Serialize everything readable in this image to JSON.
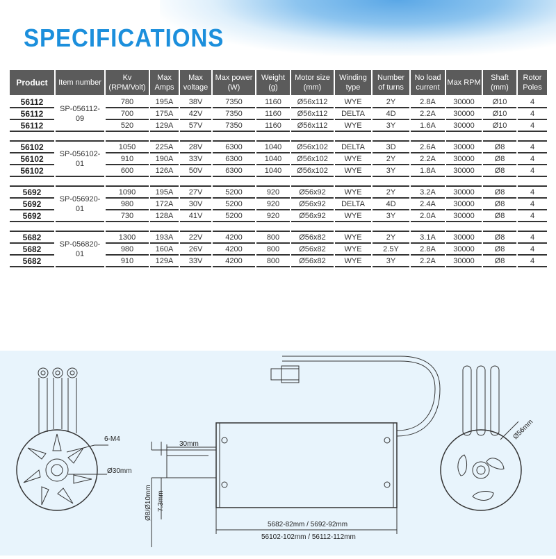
{
  "title": "SPECIFICATIONS",
  "table": {
    "headers": [
      [
        "Product"
      ],
      [
        "Item number"
      ],
      [
        "Kv",
        "(RPM/Volt)"
      ],
      [
        "Max",
        "Amps"
      ],
      [
        "Max",
        "voltage"
      ],
      [
        "Max power",
        "(W)"
      ],
      [
        "Weight",
        "(g)"
      ],
      [
        "Motor size",
        "(mm)"
      ],
      [
        "Winding",
        "type"
      ],
      [
        "Number",
        "of turns"
      ],
      [
        "No load",
        "current"
      ],
      [
        "Max RPM"
      ],
      [
        "Shaft",
        "(mm)"
      ],
      [
        "Rotor",
        "Poles"
      ]
    ],
    "groups": [
      {
        "item": "SP-056112-09",
        "rows": [
          [
            "56112",
            "780",
            "195A",
            "38V",
            "7350",
            "1160",
            "Ø56x112",
            "WYE",
            "2Y",
            "2.8A",
            "30000",
            "Ø10",
            "4"
          ],
          [
            "56112",
            "700",
            "175A",
            "42V",
            "7350",
            "1160",
            "Ø56x112",
            "DELTA",
            "4D",
            "2.2A",
            "30000",
            "Ø10",
            "4"
          ],
          [
            "56112",
            "520",
            "129A",
            "57V",
            "7350",
            "1160",
            "Ø56x112",
            "WYE",
            "3Y",
            "1.6A",
            "30000",
            "Ø10",
            "4"
          ]
        ]
      },
      {
        "item": "SP-056102-01",
        "rows": [
          [
            "56102",
            "1050",
            "225A",
            "28V",
            "6300",
            "1040",
            "Ø56x102",
            "DELTA",
            "3D",
            "2.6A",
            "30000",
            "Ø8",
            "4"
          ],
          [
            "56102",
            "910",
            "190A",
            "33V",
            "6300",
            "1040",
            "Ø56x102",
            "WYE",
            "2Y",
            "2.2A",
            "30000",
            "Ø8",
            "4"
          ],
          [
            "56102",
            "600",
            "126A",
            "50V",
            "6300",
            "1040",
            "Ø56x102",
            "WYE",
            "3Y",
            "1.8A",
            "30000",
            "Ø8",
            "4"
          ]
        ]
      },
      {
        "item": "SP-056920-01",
        "rows": [
          [
            "5692",
            "1090",
            "195A",
            "27V",
            "5200",
            "920",
            "Ø56x92",
            "WYE",
            "2Y",
            "3.2A",
            "30000",
            "Ø8",
            "4"
          ],
          [
            "5692",
            "980",
            "172A",
            "30V",
            "5200",
            "920",
            "Ø56x92",
            "DELTA",
            "4D",
            "2.4A",
            "30000",
            "Ø8",
            "4"
          ],
          [
            "5692",
            "730",
            "128A",
            "41V",
            "5200",
            "920",
            "Ø56x92",
            "WYE",
            "3Y",
            "2.0A",
            "30000",
            "Ø8",
            "4"
          ]
        ]
      },
      {
        "item": "SP-056820-01",
        "rows": [
          [
            "5682",
            "1300",
            "193A",
            "22V",
            "4200",
            "800",
            "Ø56x82",
            "WYE",
            "2Y",
            "3.1A",
            "30000",
            "Ø8",
            "4"
          ],
          [
            "5682",
            "980",
            "160A",
            "26V",
            "4200",
            "800",
            "Ø56x82",
            "WYE",
            "2.5Y",
            "2.8A",
            "30000",
            "Ø8",
            "4"
          ],
          [
            "5682",
            "910",
            "129A",
            "33V",
            "4200",
            "800",
            "Ø56x82",
            "WYE",
            "3Y",
            "2.2A",
            "30000",
            "Ø8",
            "4"
          ]
        ]
      }
    ]
  },
  "diagram": {
    "mount_holes": "6-M4",
    "mount_dia": "Ø30mm",
    "shaft_len": "30mm",
    "shaft_dia": "Ø8/Ø10mm",
    "shaft_flat": "7.3mm",
    "length_1": "5682-82mm / 5692-92mm",
    "length_2": "56102-102mm / 56112-112mm",
    "body_dia": "Ø56mm"
  }
}
